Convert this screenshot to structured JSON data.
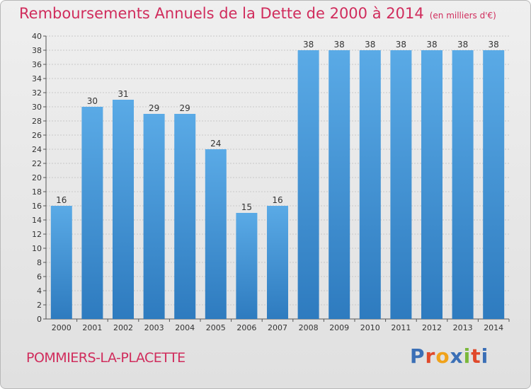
{
  "header": {
    "title": "Remboursements Annuels de la Dette de 2000 à 2014",
    "unit": "(en milliers d'€)"
  },
  "footer": {
    "commune": "POMMIERS-LA-PLACETTE",
    "logo_letters": [
      "P",
      "r",
      "o",
      "x",
      "i",
      "t",
      "i"
    ],
    "logo_colors": [
      "#3b6fb6",
      "#e0492b",
      "#f0a21a",
      "#3b6fb6",
      "#7ab83a",
      "#e0492b",
      "#3b6fb6"
    ]
  },
  "chart_data": {
    "type": "bar",
    "title": "Remboursements Annuels de la Dette de 2000 à 2014",
    "xlabel": "",
    "ylabel": "",
    "categories": [
      "2000",
      "2001",
      "2002",
      "2003",
      "2004",
      "2005",
      "2006",
      "2007",
      "2008",
      "2009",
      "2010",
      "2011",
      "2012",
      "2013",
      "2014"
    ],
    "values": [
      16,
      30,
      31,
      29,
      29,
      24,
      15,
      16,
      38,
      38,
      38,
      38,
      38,
      38,
      38
    ],
    "ylim": [
      0,
      40
    ],
    "yticks": [
      0,
      2,
      4,
      6,
      8,
      10,
      12,
      14,
      16,
      18,
      20,
      22,
      24,
      26,
      28,
      30,
      32,
      34,
      36,
      38,
      40
    ],
    "grid": true,
    "bar_color": "#4a98d8",
    "bar_color_dark": "#2e7bbf"
  }
}
